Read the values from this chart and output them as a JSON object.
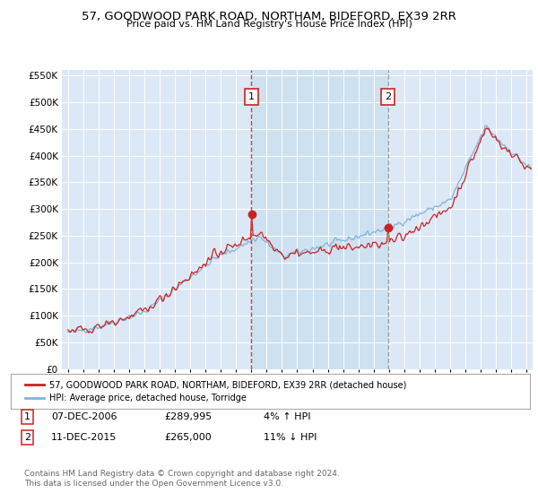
{
  "title_line1": "57, GOODWOOD PARK ROAD, NORTHAM, BIDEFORD, EX39 2RR",
  "title_line2": "Price paid vs. HM Land Registry's House Price Index (HPI)",
  "background_color": "#ffffff",
  "plot_bg_color": "#dce8f5",
  "grid_color": "#ffffff",
  "hpi_color": "#7fb3d9",
  "sale_color": "#cc2222",
  "dashed_line1_color": "#cc4444",
  "dashed_line2_color": "#999999",
  "shading_color": "#cce0f0",
  "marker1_year": 2007.0,
  "marker2_year": 2015.95,
  "marker1_value": 289995,
  "marker2_value": 265000,
  "legend_entry1": "57, GOODWOOD PARK ROAD, NORTHAM, BIDEFORD, EX39 2RR (detached house)",
  "legend_entry2": "HPI: Average price, detached house, Torridge",
  "table_row1_num": "1",
  "table_row1_date": "07-DEC-2006",
  "table_row1_price": "£289,995",
  "table_row1_hpi": "4% ↑ HPI",
  "table_row2_num": "2",
  "table_row2_date": "11-DEC-2015",
  "table_row2_price": "£265,000",
  "table_row2_hpi": "11% ↓ HPI",
  "footer": "Contains HM Land Registry data © Crown copyright and database right 2024.\nThis data is licensed under the Open Government Licence v3.0.",
  "ylim_min": 0,
  "ylim_max": 560000,
  "yticks": [
    0,
    50000,
    100000,
    150000,
    200000,
    250000,
    300000,
    350000,
    400000,
    450000,
    500000,
    550000
  ],
  "xlim_min": 1994.6,
  "xlim_max": 2025.4
}
